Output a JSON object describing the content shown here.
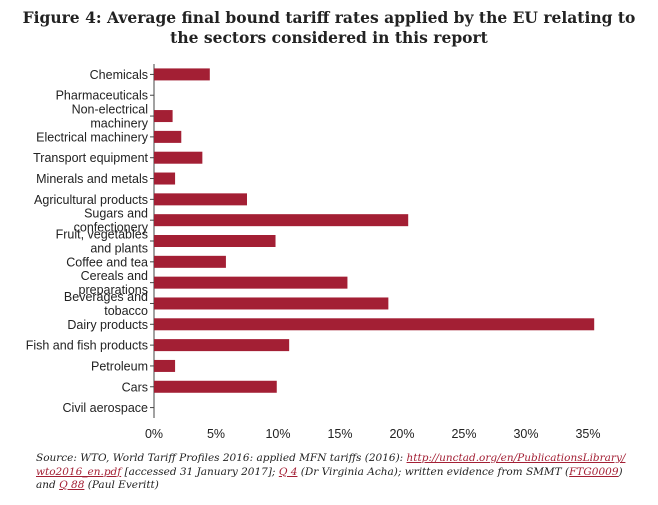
{
  "title_line1": "Figure 4: Average final bound tariff rates applied by the EU relating to",
  "title_line2": "the sectors considered in this report",
  "source": {
    "p1": "Source: WTO, World Tariff Profiles 2016: applied MFN tariffs (2016): ",
    "link1": "http://unctad.org/en/PublicationsLibrary/",
    "link1b": "wto2016_en.pdf",
    "p2": " [accessed 31 January 2017]; ",
    "link2": "Q 4",
    "p3": " (Dr Virginia Acha); written evidence from SMMT (",
    "link3": "FTG0009",
    "p4": ")",
    "p5": "and ",
    "link4": "Q 88",
    "p6": " (Paul Everitt)"
  },
  "chart_data": {
    "type": "bar",
    "orientation": "horizontal",
    "categories": [
      [
        "Chemicals"
      ],
      [
        "Pharmaceuticals"
      ],
      [
        "Non-electrical",
        "machinery"
      ],
      [
        "Electrical machinery"
      ],
      [
        "Transport equipment"
      ],
      [
        "Minerals and metals"
      ],
      [
        "Agricultural products"
      ],
      [
        "Sugars and",
        "confectionery"
      ],
      [
        "Fruit, vegetables",
        "and plants"
      ],
      [
        "Coffee and tea"
      ],
      [
        "Cereals and",
        "preparations"
      ],
      [
        "Beverages and",
        "tobacco"
      ],
      [
        "Dairy products"
      ],
      [
        "Fish and fish products"
      ],
      [
        "Petroleum"
      ],
      [
        "Cars"
      ],
      [
        "Civil aerospace"
      ]
    ],
    "values": [
      4.5,
      0,
      1.5,
      2.2,
      3.9,
      1.7,
      7.5,
      20.5,
      9.8,
      5.8,
      15.6,
      18.9,
      35.5,
      10.9,
      1.7,
      9.9,
      0
    ],
    "xlim": [
      0,
      35
    ],
    "xticks": [
      0,
      5,
      10,
      15,
      20,
      25,
      30,
      35
    ],
    "tick_suffix": "%",
    "bar_color": "#a31f34",
    "grid": false
  }
}
